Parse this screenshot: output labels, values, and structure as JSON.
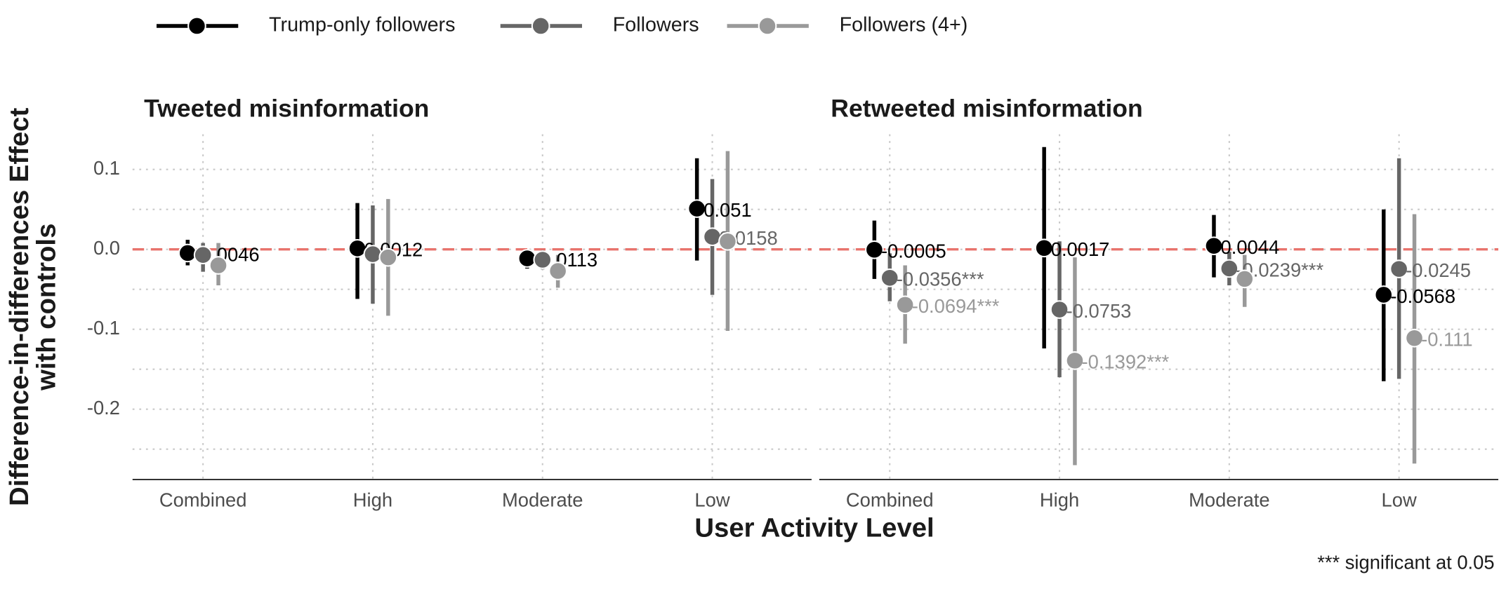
{
  "x_label": "User Activity Level",
  "y_label_lines": [
    "Difference-in-differences Effect",
    "with controls"
  ],
  "note": "*** significant at 0.05",
  "chart_data": [
    {
      "type": "pointrange",
      "title": "Tweeted misinformation",
      "categories": [
        "Combined",
        "High",
        "Moderate",
        "Low"
      ],
      "ylim": [
        -0.288,
        0.15
      ],
      "yticks": [
        {
          "value": 0.1,
          "label": "0.1"
        },
        {
          "value": 0,
          "label": "0.0"
        },
        {
          "value": -0.1,
          "label": "-0.1"
        },
        {
          "value": -0.2,
          "label": "-0.2"
        }
      ],
      "minor_yticks": [
        0.05,
        -0.05,
        -0.15,
        -0.25
      ],
      "grid": true,
      "y_tick_labels": true,
      "hline": 0,
      "hline_color": "#e8736c",
      "series": [
        {
          "name": "Trump-only followers",
          "color": "#000000",
          "values": [
            -0.0046,
            0.0012,
            -0.0113,
            0.051
          ],
          "lower": [
            -0.02,
            -0.062,
            -0.024,
            -0.014
          ],
          "upper": [
            0.012,
            0.058,
            0.0,
            0.114
          ],
          "value_labels": [
            "-0.0046",
            "0.0012",
            "-0.0113",
            "0.051"
          ]
        },
        {
          "name": "Followers",
          "color": "#666666",
          "values": [
            -0.007,
            -0.006,
            -0.013,
            0.0158
          ],
          "lower": [
            -0.028,
            -0.068,
            -0.025,
            -0.057
          ],
          "upper": [
            0.008,
            0.055,
            -0.001,
            0.088
          ],
          "value_labels": [
            null,
            null,
            null,
            "0.0158"
          ]
        },
        {
          "name": "Followers (4+)",
          "color": "#999999",
          "values": [
            -0.02,
            -0.01,
            -0.027,
            0.01
          ],
          "lower": [
            -0.045,
            -0.083,
            -0.048,
            -0.102
          ],
          "upper": [
            0.008,
            0.063,
            -0.007,
            0.123
          ],
          "value_labels": [
            null,
            null,
            null,
            null
          ]
        }
      ]
    },
    {
      "type": "pointrange",
      "title": "Retweeted misinformation",
      "categories": [
        "Combined",
        "High",
        "Moderate",
        "Low"
      ],
      "ylim": [
        -0.288,
        0.15
      ],
      "yticks": [
        {
          "value": 0.1,
          "label": "0.1"
        },
        {
          "value": 0,
          "label": "0.0"
        },
        {
          "value": -0.1,
          "label": "-0.1"
        },
        {
          "value": -0.2,
          "label": "-0.2"
        }
      ],
      "minor_yticks": [
        0.05,
        -0.05,
        -0.15,
        -0.25
      ],
      "grid": true,
      "y_tick_labels": false,
      "hline": 0,
      "hline_color": "#e8736c",
      "series": [
        {
          "name": "Trump-only followers",
          "color": "#000000",
          "values": [
            -0.0005,
            0.0017,
            0.0044,
            -0.0568
          ],
          "lower": [
            -0.037,
            -0.124,
            -0.035,
            -0.165
          ],
          "upper": [
            0.036,
            0.128,
            0.043,
            0.05
          ],
          "value_labels": [
            "-0.0005",
            "0.0017",
            "0.0044",
            "-0.0568"
          ]
        },
        {
          "name": "Followers",
          "color": "#666666",
          "values": [
            -0.0356,
            -0.0753,
            -0.0239,
            -0.0245
          ],
          "lower": [
            -0.065,
            -0.16,
            -0.045,
            -0.162
          ],
          "upper": [
            -0.005,
            0.01,
            -0.003,
            0.114
          ],
          "value_labels": [
            "-0.0356***",
            "-0.0753",
            "-0.0239***",
            "-0.0245"
          ]
        },
        {
          "name": "Followers (4+)",
          "color": "#999999",
          "values": [
            -0.0694,
            -0.1392,
            -0.037,
            -0.111
          ],
          "lower": [
            -0.118,
            -0.27,
            -0.072,
            -0.268
          ],
          "upper": [
            -0.02,
            -0.01,
            -0.007,
            0.044
          ],
          "value_labels": [
            "-0.0694***",
            "-0.1392***",
            null,
            "-0.111"
          ]
        }
      ]
    }
  ]
}
